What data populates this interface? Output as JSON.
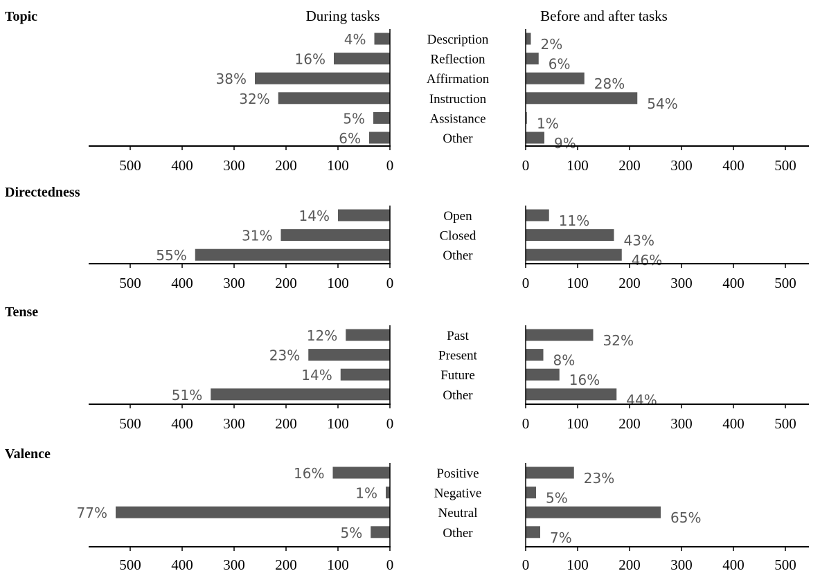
{
  "chart_data": {
    "type": "bar",
    "orientation": "horizontal",
    "layout": "back-to-back",
    "column_titles": {
      "left": "During tasks",
      "right": "Before and after tasks"
    },
    "axis_ticks": [
      0,
      100,
      200,
      300,
      400,
      500
    ],
    "xlim": [
      0,
      570
    ],
    "bar_color": "#595959",
    "panels": [
      {
        "title": "Topic",
        "categories": [
          "Description",
          "Reflection",
          "Affirmation",
          "Instruction",
          "Assistance",
          "Other"
        ],
        "during": {
          "values": [
            30,
            108,
            260,
            215,
            32,
            40
          ],
          "labels": [
            "4%",
            "16%",
            "38%",
            "32%",
            "5%",
            "6%"
          ]
        },
        "before_after": {
          "values": [
            10,
            25,
            113,
            215,
            2,
            36
          ],
          "labels": [
            "2%",
            "6%",
            "28%",
            "54%",
            "1%",
            "9%"
          ]
        }
      },
      {
        "title": "Directedness",
        "categories": [
          "Open",
          "Closed",
          "Other"
        ],
        "during": {
          "values": [
            100,
            210,
            375
          ],
          "labels": [
            "14%",
            "31%",
            "55%"
          ]
        },
        "before_after": {
          "values": [
            45,
            170,
            185
          ],
          "labels": [
            "11%",
            "43%",
            "46%"
          ]
        }
      },
      {
        "title": "Tense",
        "categories": [
          "Past",
          "Present",
          "Future",
          "Other"
        ],
        "during": {
          "values": [
            85,
            157,
            95,
            345
          ],
          "labels": [
            "12%",
            "23%",
            "14%",
            "51%"
          ]
        },
        "before_after": {
          "values": [
            130,
            34,
            65,
            175
          ],
          "labels": [
            "32%",
            "8%",
            "16%",
            "44%"
          ]
        }
      },
      {
        "title": "Valence",
        "categories": [
          "Positive",
          "Negative",
          "Neutral",
          "Other"
        ],
        "during": {
          "values": [
            110,
            8,
            528,
            37
          ],
          "labels": [
            "16%",
            "1%",
            "77%",
            "5%"
          ]
        },
        "before_after": {
          "values": [
            93,
            20,
            260,
            28
          ],
          "labels": [
            "23%",
            "5%",
            "65%",
            "7%"
          ]
        }
      }
    ]
  }
}
